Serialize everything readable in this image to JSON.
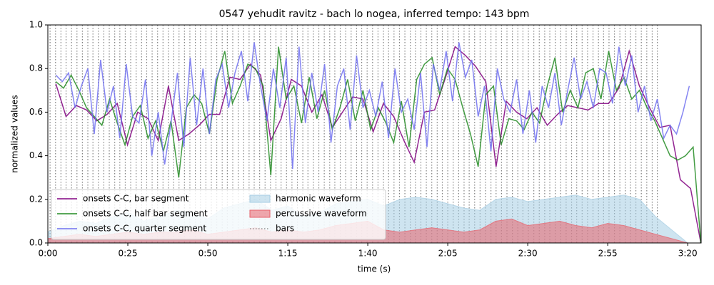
{
  "chart_data": {
    "type": "line",
    "title": "0547 yehudit ravitz - bach lo nogea, inferred tempo: 143 bpm",
    "xlabel": "time (s)",
    "ylabel": "normalized values",
    "xlim": [
      0,
      204.2
    ],
    "ylim": [
      0,
      1
    ],
    "xticks": [
      {
        "value": 0,
        "label": "0:00"
      },
      {
        "value": 25,
        "label": "0:25"
      },
      {
        "value": 50,
        "label": "0:50"
      },
      {
        "value": 75,
        "label": "1:15"
      },
      {
        "value": 100,
        "label": "1:40"
      },
      {
        "value": 125,
        "label": "2:05"
      },
      {
        "value": 150,
        "label": "2:30"
      },
      {
        "value": 175,
        "label": "2:55"
      },
      {
        "value": 200,
        "label": "3:20"
      }
    ],
    "yticks": [
      {
        "value": 0,
        "label": "0.0"
      },
      0.2,
      0.4,
      0.6,
      0.8,
      {
        "value": 1,
        "label": "1.0"
      }
    ],
    "legend": "lower left",
    "series": [
      {
        "name": "onsets C-C, bar segment",
        "style": "line",
        "color": "#800080",
        "x": [
          2.5,
          5.7,
          8.9,
          12.1,
          15.3,
          18.5,
          21.7,
          24.9,
          28.1,
          31.3,
          34.5,
          37.7,
          40.9,
          44.1,
          47.3,
          50.5,
          53.7,
          56.9,
          60.1,
          63.3,
          66.5,
          69.7,
          72.9,
          76.1,
          79.3,
          82.5,
          85.7,
          88.9,
          92.1,
          95.3,
          98.5,
          101.7,
          104.9,
          108.1,
          111.3,
          114.5,
          117.7,
          120.9,
          124.1,
          127.3,
          130.5,
          133.7,
          136.9,
          140.1,
          143.3,
          146.5,
          149.7,
          152.9,
          156.1,
          159.3,
          162.5,
          165.7,
          168.9,
          172.1,
          175.3,
          178.5,
          181.7,
          184.9,
          188.1,
          191.3,
          194.5,
          197.7,
          200.9,
          204.1
        ],
        "values": [
          0.73,
          0.58,
          0.63,
          0.61,
          0.56,
          0.59,
          0.64,
          0.45,
          0.6,
          0.57,
          0.47,
          0.72,
          0.47,
          0.5,
          0.54,
          0.59,
          0.59,
          0.76,
          0.75,
          0.82,
          0.77,
          0.47,
          0.57,
          0.75,
          0.72,
          0.6,
          0.68,
          0.53,
          0.6,
          0.67,
          0.66,
          0.51,
          0.64,
          0.58,
          0.47,
          0.37,
          0.6,
          0.61,
          0.75,
          0.9,
          0.86,
          0.81,
          0.74,
          0.35,
          0.65,
          0.6,
          0.57,
          0.62,
          0.54,
          0.59,
          0.63,
          0.62,
          0.61,
          0.64,
          0.64,
          0.71,
          0.88,
          0.72,
          0.62,
          0.53,
          0.54,
          0.29,
          0.25,
          0
        ]
      },
      {
        "name": "onsets C-C, half bar segment",
        "style": "line",
        "color": "#228b22",
        "x": [
          2.5,
          4.9,
          7.3,
          9.7,
          12.1,
          14.5,
          16.9,
          19.3,
          21.7,
          24.1,
          26.5,
          28.9,
          31.3,
          33.7,
          36.1,
          38.5,
          40.9,
          43.3,
          45.7,
          48.1,
          50.5,
          52.9,
          55.3,
          57.7,
          60.1,
          62.5,
          64.9,
          67.3,
          69.7,
          72.1,
          74.5,
          76.9,
          79.3,
          81.7,
          84.1,
          86.5,
          88.9,
          91.3,
          93.7,
          96.1,
          98.5,
          100.9,
          103.3,
          105.7,
          108.1,
          110.5,
          112.9,
          115.3,
          117.7,
          120.1,
          122.5,
          124.9,
          127.3,
          129.7,
          132.1,
          134.5,
          136.9,
          139.3,
          141.7,
          144.1,
          146.5,
          148.9,
          151.3,
          153.7,
          156.1,
          158.5,
          160.9,
          163.3,
          165.7,
          168.1,
          170.5,
          172.9,
          175.3,
          177.7,
          180.1,
          182.5,
          184.9,
          187.3,
          189.7,
          192.1,
          194.5,
          196.9,
          199.3,
          201.7,
          204.1
        ],
        "values": [
          0.74,
          0.71,
          0.77,
          0.7,
          0.62,
          0.58,
          0.54,
          0.66,
          0.55,
          0.45,
          0.58,
          0.63,
          0.48,
          0.56,
          0.42,
          0.56,
          0.3,
          0.62,
          0.68,
          0.64,
          0.5,
          0.75,
          0.88,
          0.64,
          0.72,
          0.82,
          0.8,
          0.72,
          0.31,
          0.9,
          0.66,
          0.72,
          0.55,
          0.76,
          0.57,
          0.7,
          0.52,
          0.62,
          0.75,
          0.56,
          0.7,
          0.52,
          0.62,
          0.55,
          0.46,
          0.65,
          0.44,
          0.75,
          0.82,
          0.85,
          0.68,
          0.8,
          0.75,
          0.62,
          0.5,
          0.35,
          0.68,
          0.72,
          0.45,
          0.57,
          0.56,
          0.52,
          0.6,
          0.55,
          0.72,
          0.85,
          0.6,
          0.7,
          0.62,
          0.78,
          0.8,
          0.66,
          0.88,
          0.7,
          0.76,
          0.66,
          0.7,
          0.62,
          0.56,
          0.48,
          0.4,
          0.38,
          0.4,
          0.44,
          0
        ]
      },
      {
        "name": "onsets C-C, quarter segment",
        "style": "line",
        "color": "#7070f0",
        "x": [
          2.5,
          4.5,
          6.5,
          8.5,
          10.5,
          12.5,
          14.5,
          16.5,
          18.5,
          20.5,
          22.5,
          24.5,
          26.5,
          28.5,
          30.5,
          32.5,
          34.5,
          36.5,
          38.5,
          40.5,
          42.5,
          44.5,
          46.5,
          48.5,
          50.5,
          52.5,
          54.5,
          56.5,
          58.5,
          60.5,
          62.5,
          64.5,
          66.5,
          68.5,
          70.5,
          72.5,
          74.5,
          76.5,
          78.5,
          80.5,
          82.5,
          84.5,
          86.5,
          88.5,
          90.5,
          92.5,
          94.5,
          96.5,
          98.5,
          100.5,
          102.5,
          104.5,
          106.5,
          108.5,
          110.5,
          112.5,
          114.5,
          116.5,
          118.5,
          120.5,
          122.5,
          124.5,
          126.5,
          128.5,
          130.5,
          132.5,
          134.5,
          136.5,
          138.5,
          140.5,
          142.5,
          144.5,
          146.5,
          148.5,
          150.5,
          152.5,
          154.5,
          156.5,
          158.5,
          160.5,
          162.5,
          164.5,
          166.5,
          168.5,
          170.5,
          172.5,
          174.5,
          176.5,
          178.5,
          180.5,
          182.5,
          184.5,
          186.5,
          188.5,
          190.5,
          192.5,
          194.5,
          196.5,
          198.5,
          200.5
        ],
        "values": [
          0.77,
          0.74,
          0.78,
          0.62,
          0.72,
          0.8,
          0.5,
          0.84,
          0.6,
          0.72,
          0.48,
          0.82,
          0.58,
          0.55,
          0.75,
          0.4,
          0.6,
          0.36,
          0.55,
          0.78,
          0.44,
          0.85,
          0.54,
          0.8,
          0.5,
          0.75,
          0.82,
          0.62,
          0.78,
          0.88,
          0.65,
          0.92,
          0.72,
          0.56,
          0.8,
          0.62,
          0.85,
          0.34,
          0.9,
          0.55,
          0.78,
          0.6,
          0.82,
          0.46,
          0.72,
          0.8,
          0.52,
          0.86,
          0.62,
          0.7,
          0.58,
          0.74,
          0.48,
          0.8,
          0.6,
          0.66,
          0.52,
          0.78,
          0.44,
          0.82,
          0.7,
          0.88,
          0.65,
          0.92,
          0.76,
          0.84,
          0.58,
          0.72,
          0.42,
          0.8,
          0.66,
          0.6,
          0.75,
          0.5,
          0.7,
          0.46,
          0.72,
          0.62,
          0.78,
          0.54,
          0.7,
          0.85,
          0.66,
          0.74,
          0.62,
          0.8,
          0.78,
          0.64,
          0.9,
          0.72,
          0.86,
          0.6,
          0.72,
          0.56,
          0.66,
          0.48,
          0.54,
          0.5,
          0.6,
          0.72
        ]
      },
      {
        "name": "harmonic waveform",
        "style": "area",
        "color": "#a6cde3",
        "x": [
          0,
          5,
          10,
          15,
          20,
          25,
          30,
          35,
          40,
          45,
          50,
          55,
          60,
          65,
          70,
          75,
          80,
          85,
          90,
          95,
          100,
          105,
          110,
          115,
          120,
          125,
          130,
          135,
          140,
          145,
          150,
          155,
          160,
          165,
          170,
          175,
          180,
          185,
          190,
          195,
          200
        ],
        "values": [
          0.05,
          0.08,
          0.1,
          0.09,
          0.12,
          0.14,
          0.1,
          0.12,
          0.15,
          0.14,
          0.11,
          0.16,
          0.18,
          0.2,
          0.15,
          0.17,
          0.12,
          0.14,
          0.18,
          0.19,
          0.2,
          0.17,
          0.2,
          0.21,
          0.2,
          0.18,
          0.16,
          0.15,
          0.2,
          0.21,
          0.19,
          0.2,
          0.21,
          0.22,
          0.2,
          0.21,
          0.22,
          0.2,
          0.12,
          0.06,
          0
        ]
      },
      {
        "name": "percussive waveform",
        "style": "area",
        "color": "#e8606a",
        "x": [
          0,
          5,
          10,
          15,
          20,
          25,
          30,
          35,
          40,
          45,
          50,
          55,
          60,
          65,
          70,
          75,
          80,
          85,
          90,
          95,
          100,
          105,
          110,
          115,
          120,
          125,
          130,
          135,
          140,
          145,
          150,
          155,
          160,
          165,
          170,
          175,
          180,
          185,
          190,
          195,
          200
        ],
        "values": [
          0.02,
          0.03,
          0.04,
          0.03,
          0.04,
          0.05,
          0.04,
          0.05,
          0.05,
          0.06,
          0.04,
          0.05,
          0.06,
          0.07,
          0.05,
          0.06,
          0.05,
          0.06,
          0.08,
          0.09,
          0.1,
          0.06,
          0.05,
          0.06,
          0.07,
          0.06,
          0.05,
          0.06,
          0.1,
          0.11,
          0.08,
          0.09,
          0.1,
          0.08,
          0.07,
          0.09,
          0.08,
          0.06,
          0.04,
          0.02,
          0
        ]
      },
      {
        "name": "bars",
        "style": "vlines",
        "color": "#808080",
        "x": [
          0.7,
          2.4,
          4.1,
          5.7,
          7.4,
          9.1,
          10.8,
          12.5,
          14.1,
          15.8,
          17.5,
          19.2,
          20.9,
          22.5,
          24.2,
          25.9,
          27.6,
          29.3,
          30.9,
          32.6,
          34.3,
          36.0,
          37.7,
          39.3,
          41.0,
          42.7,
          44.4,
          46.1,
          47.7,
          49.4,
          51.1,
          52.8,
          54.5,
          56.1,
          57.8,
          59.5,
          61.2,
          62.9,
          64.5,
          66.2,
          67.9,
          69.6,
          71.3,
          72.9,
          74.6,
          76.3,
          78.0,
          79.7,
          81.3,
          83.0,
          84.7,
          86.4,
          88.1,
          89.7,
          91.4,
          93.1,
          94.8,
          96.5,
          98.1,
          99.8,
          101.5,
          103.2,
          104.9,
          106.5,
          108.2,
          109.9,
          111.6,
          113.3,
          114.9,
          116.6,
          118.3,
          120.0,
          121.7,
          123.3,
          125.0,
          126.7,
          128.4,
          130.1,
          131.7,
          133.4,
          135.1,
          136.8,
          138.5,
          140.1,
          141.8,
          143.5,
          145.2,
          146.9,
          148.5,
          150.2,
          151.9,
          153.6,
          155.3,
          156.9,
          158.6,
          160.3,
          162.0,
          163.7,
          165.3,
          167.0,
          168.7,
          170.4,
          172.1,
          173.7,
          175.4,
          177.1,
          178.8,
          180.5,
          182.1,
          183.8,
          185.5,
          187.2,
          188.9,
          190.5
        ]
      }
    ]
  }
}
